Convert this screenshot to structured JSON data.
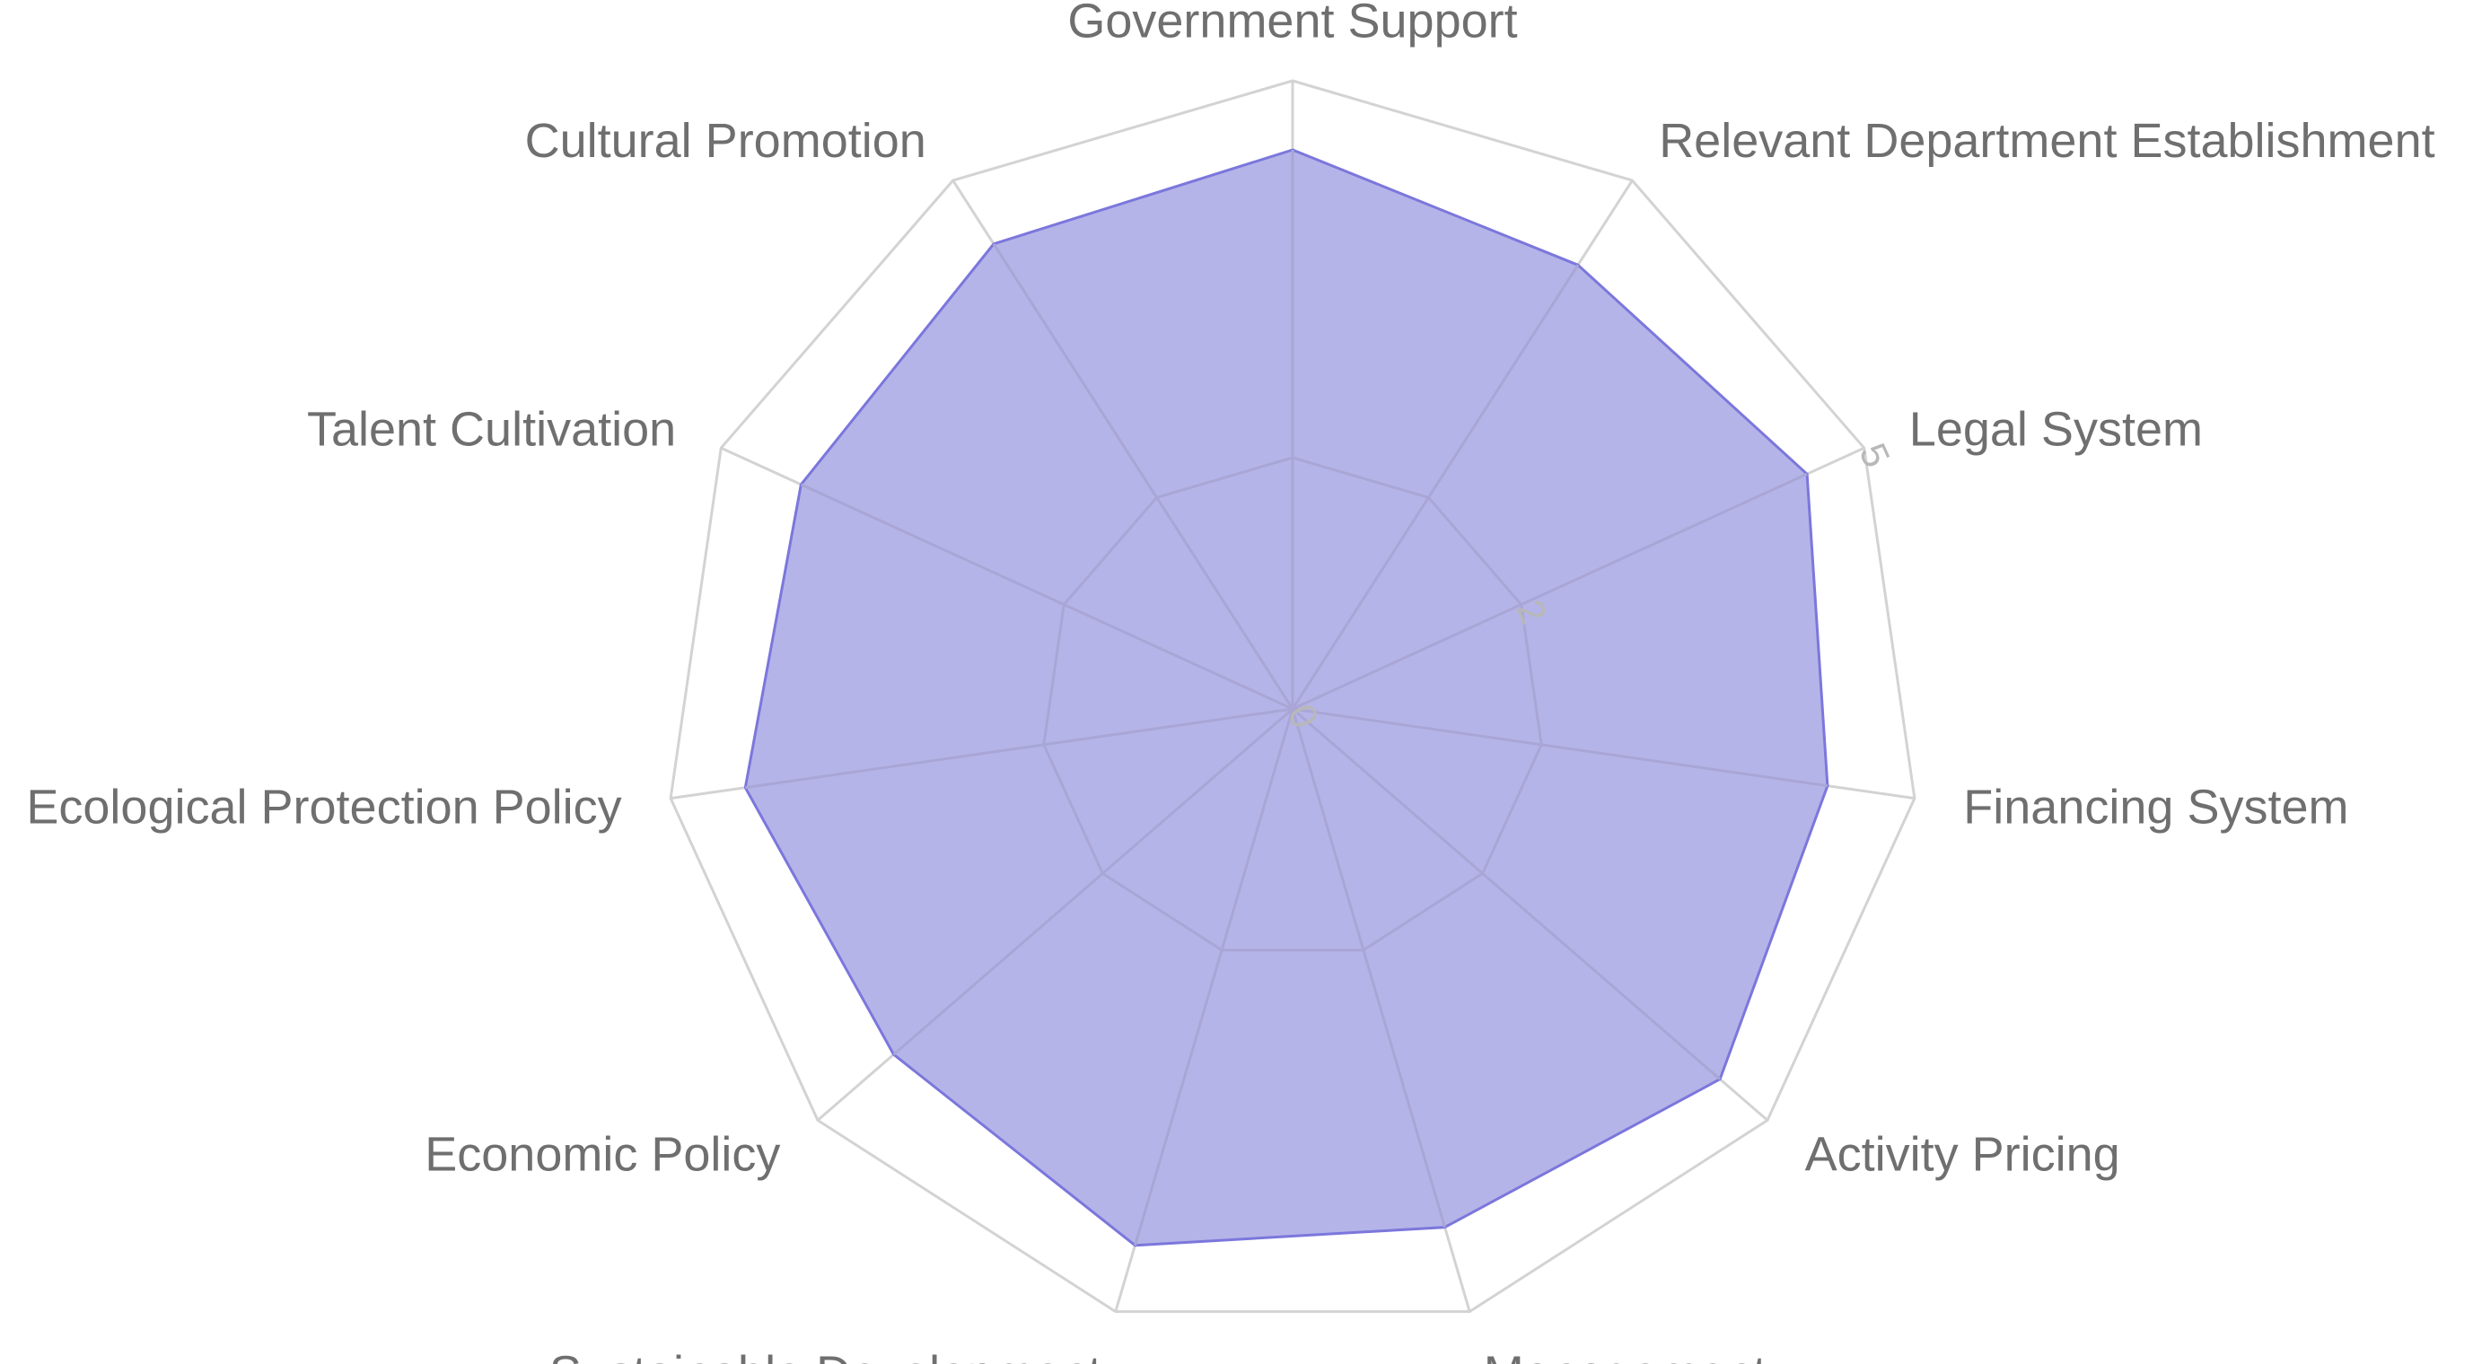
{
  "chart_data": {
    "type": "radar",
    "categories": [
      "Government Support",
      "Relevant Department Establishment",
      "Legal System",
      "Financing System",
      "Activity Pricing",
      "Management",
      "Sustainable Development",
      "Economic Policy",
      "Ecological Protection Policy",
      "Talent Cultivation",
      "Cultural Promotion"
    ],
    "values": [
      4.45,
      4.2,
      4.5,
      4.3,
      4.5,
      4.3,
      4.45,
      4.2,
      4.4,
      4.3,
      4.4
    ],
    "r_range": [
      0,
      5
    ],
    "r_ticks": [
      0,
      2,
      5
    ],
    "grid_levels": [
      2,
      5
    ],
    "grid": true,
    "colors": {
      "fill": "#b5b4e8",
      "stroke": "#7b77dc",
      "grid": "#d3d3d3",
      "inner_grid": "#a9a6d6",
      "label": "#6f6f6f",
      "tick": "#b8b8b8"
    }
  }
}
